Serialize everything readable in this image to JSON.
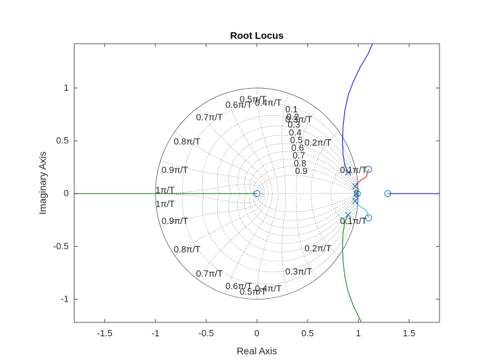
{
  "chart_data": {
    "type": "line",
    "title": "Root Locus",
    "xlabel": "Real Axis",
    "ylabel": "Imaginary Axis",
    "xlim": [
      -1.8,
      1.8
    ],
    "ylim": [
      -1.22,
      1.42
    ],
    "xticks": [
      -1.5,
      -1,
      -0.5,
      0,
      0.5,
      1,
      1.5
    ],
    "xtick_labels": [
      "-1.5",
      "-1",
      "-0.5",
      "0",
      "0.5",
      "1",
      "1.5"
    ],
    "yticks": [
      -1,
      -0.5,
      0,
      0.5,
      1
    ],
    "ytick_labels": [
      "-1",
      "-0.5",
      "0",
      "0.5",
      "1"
    ],
    "grid": "zgrid",
    "zeta_labels": [
      "0.1",
      "0.2",
      "0.3",
      "0.4",
      "0.5",
      "0.6",
      "0.7",
      "0.8",
      "0.9"
    ],
    "wn_labels": [
      "0.1π/T",
      "0.2π/T",
      "0.3π/T",
      "0.4π/T",
      "0.5π/T",
      "0.6π/T",
      "0.7π/T",
      "0.8π/T",
      "0.9π/T",
      "1π/T"
    ],
    "poles": [
      [
        0.9,
        0.2
      ],
      [
        0.9,
        -0.2
      ],
      [
        0.97,
        0.07
      ],
      [
        0.97,
        -0.07
      ],
      [
        0.98,
        0.0
      ]
    ],
    "zeros": [
      [
        0.0,
        0.0
      ],
      [
        1.1,
        0.23
      ],
      [
        1.1,
        -0.23
      ],
      [
        1.29,
        0.0
      ],
      [
        0.99,
        0.0
      ]
    ],
    "colors": {
      "blue": "#0000ff",
      "green": "#008000",
      "red": "#ff0000",
      "cyan": "#00bfbf",
      "zero_marker": "#0072bd",
      "pole_marker": "#0072bd",
      "grid": "#4d4d4d",
      "unit_circle": "#595959"
    },
    "series": [
      {
        "color": "#0000ff",
        "points": [
          [
            0.9,
            0.2
          ],
          [
            0.87,
            0.26
          ],
          [
            0.85,
            0.36
          ],
          [
            0.845,
            0.5
          ],
          [
            0.85,
            0.65
          ],
          [
            0.87,
            0.8
          ],
          [
            0.9,
            0.93
          ],
          [
            0.95,
            1.06
          ],
          [
            1.02,
            1.2
          ],
          [
            1.1,
            1.33
          ],
          [
            1.14,
            1.42
          ]
        ]
      },
      {
        "color": "#008000",
        "points": [
          [
            0.9,
            -0.2
          ],
          [
            0.87,
            -0.26
          ],
          [
            0.85,
            -0.36
          ],
          [
            0.845,
            -0.5
          ],
          [
            0.85,
            -0.65
          ],
          [
            0.87,
            -0.8
          ],
          [
            0.9,
            -0.93
          ],
          [
            0.95,
            -1.06
          ],
          [
            1.0,
            -1.16
          ],
          [
            1.03,
            -1.22
          ]
        ]
      },
      {
        "color": "#ff0000",
        "points": [
          [
            0.97,
            0.07
          ],
          [
            0.99,
            0.1
          ],
          [
            1.03,
            0.13
          ],
          [
            1.08,
            0.16
          ],
          [
            1.1,
            0.23
          ]
        ]
      },
      {
        "color": "#00bfbf",
        "points": [
          [
            0.97,
            -0.07
          ],
          [
            0.99,
            -0.1
          ],
          [
            1.03,
            -0.13
          ],
          [
            1.08,
            -0.16
          ],
          [
            1.1,
            -0.23
          ]
        ]
      },
      {
        "color": "#008000",
        "points": [
          [
            -1.8,
            0
          ],
          [
            0.0,
            0
          ]
        ]
      },
      {
        "color": "#0000ff",
        "points": [
          [
            1.29,
            0
          ],
          [
            1.8,
            0
          ]
        ]
      },
      {
        "color": "#0000ff",
        "points": [
          [
            0.98,
            0
          ],
          [
            0.99,
            0
          ]
        ]
      }
    ]
  }
}
